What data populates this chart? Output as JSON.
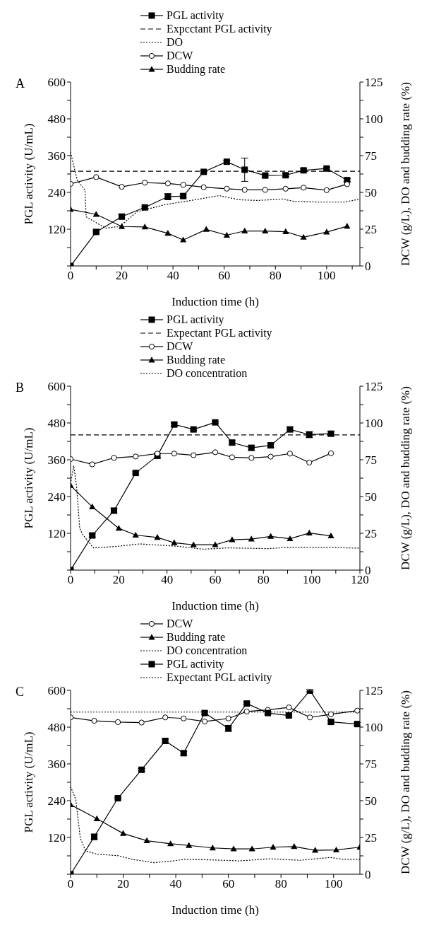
{
  "chart_data": [
    {
      "type": "line",
      "title": "A",
      "xlabel": "Induction time (h)",
      "ylabel": "PGL activity (U/mL)",
      "y2label": "DCW (g/L), DO and budding rate (%)",
      "legend": "top",
      "xlim": [
        0,
        113
      ],
      "xticks": [
        0,
        {
          "value": 10,
          "label": null
        },
        20,
        {
          "value": 30,
          "label": null
        },
        40,
        {
          "value": 50,
          "label": null
        },
        60,
        {
          "value": 70,
          "label": null
        },
        80,
        {
          "value": 90,
          "label": null
        },
        100,
        {
          "value": 110,
          "label": null
        }
      ],
      "ylim": [
        0,
        600
      ],
      "yticks": [
        {
          "value": 0,
          "label": null
        },
        {
          "value": 60,
          "label": null
        },
        120,
        {
          "value": 180,
          "label": null
        },
        240,
        {
          "value": 300,
          "label": null
        },
        360,
        {
          "value": 420,
          "label": null
        },
        480,
        {
          "value": 540,
          "label": null
        },
        600
      ],
      "y2lim": [
        0,
        125
      ],
      "y2ticks": [
        0,
        {
          "value": 12.5,
          "label": null
        },
        25,
        {
          "value": 37.5,
          "label": null
        },
        50,
        {
          "value": 62.5,
          "label": null
        },
        75,
        {
          "value": 87.5,
          "label": null
        },
        100,
        {
          "value": 112.5,
          "label": null
        },
        125
      ],
      "series": [
        {
          "name": "PGL activity",
          "color": "#000000",
          "marker": "square",
          "line_style": "solid",
          "x": [
            0,
            10,
            20,
            29,
            38,
            44,
            52,
            61,
            68,
            76,
            84,
            91,
            100,
            108
          ],
          "values": [
            0,
            111,
            161,
            191,
            226,
            228,
            307,
            340,
            314,
            295,
            296,
            312,
            318,
            280
          ],
          "errors": [
            null,
            3,
            8,
            4,
            10,
            6,
            4,
            5,
            38,
            5,
            5,
            5,
            4,
            5
          ]
        },
        {
          "name": "Expcctant PGL activity",
          "color": "#000000",
          "marker": "none",
          "line_style": "dashed",
          "x": [
            0,
            113
          ],
          "values": [
            309,
            309
          ]
        },
        {
          "name": "DO",
          "color": "#000000",
          "marker": "none",
          "line_style": "dotted",
          "axis": "y2",
          "x": [
            0,
            2.6,
            5.6,
            6.1,
            13.7,
            19.2,
            25.9,
            37,
            46,
            58,
            66,
            73,
            83,
            87,
            97,
            107,
            113
          ],
          "values": [
            77.3,
            58.3,
            51.7,
            33.4,
            25.7,
            26.8,
            36.8,
            41.7,
            44.2,
            47.8,
            45.0,
            44.5,
            45.5,
            43.9,
            43.4,
            43.4,
            45.5
          ]
        },
        {
          "name": "DCW",
          "color": "#000000",
          "marker": "circle",
          "line_style": "solid",
          "axis": "y2",
          "x": [
            0,
            10,
            20,
            29,
            38,
            44,
            52,
            61,
            68,
            76,
            84,
            91,
            100,
            108
          ],
          "values": [
            55.8,
            60.4,
            53.8,
            56.6,
            56.1,
            55.1,
            53.5,
            52.5,
            51.7,
            51.7,
            52.5,
            53.2,
            51.5,
            55.6
          ]
        },
        {
          "name": "Budding rate",
          "color": "#000000",
          "marker": "triangle",
          "line_style": "solid",
          "axis": "y2",
          "x": [
            0,
            10,
            20,
            29,
            38,
            44,
            53,
            61,
            68,
            76,
            84,
            91,
            100,
            108
          ],
          "values": [
            38.4,
            35.1,
            26.8,
            26.5,
            22.2,
            17.7,
            24.8,
            20.9,
            23.8,
            23.7,
            23.3,
            19.5,
            23.0,
            27.0
          ]
        }
      ]
    },
    {
      "type": "line",
      "title": "B",
      "xlabel": "Induction time (h)",
      "ylabel": "PGL activity (U/mL)",
      "y2label": "DCW (g/L), DO and budding rate (%)",
      "legend": "top",
      "xlim": [
        0,
        120
      ],
      "xticks": [
        0,
        {
          "value": 10,
          "label": null
        },
        20,
        {
          "value": 30,
          "label": null
        },
        40,
        {
          "value": 50,
          "label": null
        },
        60,
        {
          "value": 70,
          "label": null
        },
        80,
        {
          "value": 90,
          "label": null
        },
        100,
        {
          "value": 110,
          "label": null
        },
        120
      ],
      "ylim": [
        0,
        600
      ],
      "yticks": [
        {
          "value": 0,
          "label": null
        },
        {
          "value": 60,
          "label": null
        },
        120,
        {
          "value": 180,
          "label": null
        },
        240,
        {
          "value": 300,
          "label": null
        },
        360,
        {
          "value": 420,
          "label": null
        },
        480,
        {
          "value": 540,
          "label": null
        },
        600
      ],
      "y2lim": [
        0,
        125
      ],
      "y2ticks": [
        0,
        {
          "value": 12.5,
          "label": null
        },
        25,
        {
          "value": 37.5,
          "label": null
        },
        50,
        {
          "value": 62.5,
          "label": null
        },
        75,
        {
          "value": 87.5,
          "label": null
        },
        100,
        {
          "value": 112.5,
          "label": null
        },
        125
      ],
      "series": [
        {
          "name": "PGL activity",
          "color": "#000000",
          "marker": "square",
          "line_style": "solid",
          "x": [
            0,
            9,
            18,
            27,
            36,
            43,
            51,
            60,
            67,
            75,
            83,
            91,
            99,
            108
          ],
          "values": [
            0,
            113,
            194,
            317,
            373,
            475,
            459,
            482,
            416,
            399,
            407,
            459,
            442,
            445
          ],
          "errors": [
            null,
            5,
            8,
            4,
            8,
            5,
            4,
            4,
            8,
            8,
            8,
            8,
            10,
            7
          ]
        },
        {
          "name": "Expectant PGL activity",
          "color": "#000000",
          "marker": "none",
          "line_style": "dashed",
          "x": [
            0,
            120
          ],
          "values": [
            441,
            441
          ]
        },
        {
          "name": "DCW",
          "color": "#000000",
          "marker": "circle",
          "line_style": "solid",
          "axis": "y2",
          "x": [
            0,
            9,
            18,
            27,
            36,
            43,
            51,
            60,
            67,
            75,
            83,
            91,
            99,
            108
          ],
          "values": [
            75.5,
            71.9,
            76.3,
            77.2,
            79.2,
            79.2,
            78.1,
            80.1,
            76.7,
            76.3,
            77.1,
            79.2,
            73.1,
            79.4
          ]
        },
        {
          "name": "Budding rate",
          "color": "#000000",
          "marker": "triangle",
          "line_style": "solid",
          "axis": "y2",
          "x": [
            0,
            9,
            20,
            27,
            36,
            43,
            51,
            60,
            67,
            75,
            83,
            91,
            99,
            108
          ],
          "values": [
            57.5,
            43.0,
            28.4,
            23.8,
            22.2,
            18.6,
            17.2,
            17.2,
            20.6,
            21.1,
            22.9,
            21.3,
            25.2,
            23.3
          ]
        },
        {
          "name": "DO concentration",
          "color": "#000000",
          "marker": "none",
          "line_style": "dotted",
          "axis": "y2",
          "x": [
            0,
            1.3,
            2.5,
            3.8,
            5.1,
            9.5,
            18.4,
            28.6,
            43.8,
            55.2,
            65.4,
            81.9,
            92.1,
            107.3,
            120
          ],
          "values": [
            58.6,
            71.0,
            56.8,
            28.4,
            24.0,
            15.1,
            16.0,
            17.8,
            16.3,
            14.2,
            15.1,
            14.6,
            15.6,
            15.4,
            14.9
          ]
        }
      ]
    },
    {
      "type": "line",
      "title": "C",
      "xlabel": "Induction time (h)",
      "ylabel": "PGL activity (U/mL)",
      "y2label": "DCW (g/L), DO and budding rate (%)",
      "legend": "top",
      "xlim": [
        0,
        110
      ],
      "xticks": [
        0,
        {
          "value": 10,
          "label": null
        },
        20,
        {
          "value": 30,
          "label": null
        },
        40,
        {
          "value": 50,
          "label": null
        },
        60,
        {
          "value": 70,
          "label": null
        },
        80,
        {
          "value": 90,
          "label": null
        },
        100
      ],
      "ylim": [
        0,
        600
      ],
      "yticks": [
        {
          "value": 0,
          "label": null
        },
        {
          "value": 60,
          "label": null
        },
        120,
        {
          "value": 180,
          "label": null
        },
        240,
        {
          "value": 300,
          "label": null
        },
        360,
        {
          "value": 420,
          "label": null
        },
        480,
        {
          "value": 540,
          "label": null
        },
        600
      ],
      "y2lim": [
        0,
        125
      ],
      "y2ticks": [
        0,
        {
          "value": 12.5,
          "label": null
        },
        25,
        {
          "value": 37.5,
          "label": null
        },
        50,
        {
          "value": 62.5,
          "label": null
        },
        75,
        {
          "value": 87.5,
          "label": null
        },
        100,
        {
          "value": 112.5,
          "label": null
        },
        125
      ],
      "series": [
        {
          "name": "DCW",
          "color": "#000000",
          "marker": "circle",
          "line_style": "solid",
          "axis": "y2",
          "x": [
            0,
            9,
            18,
            27,
            36,
            43,
            51,
            60,
            67,
            75,
            83,
            91,
            99,
            109
          ],
          "values": [
            106.6,
            104.3,
            103.4,
            103.1,
            106.6,
            105.9,
            103.8,
            105.9,
            110.6,
            111.7,
            113.4,
            106.6,
            108.7,
            111.2
          ]
        },
        {
          "name": "Budding rate",
          "color": "#000000",
          "marker": "triangle",
          "line_style": "solid",
          "axis": "y2",
          "x": [
            0,
            10,
            20,
            29,
            38,
            45,
            54,
            62,
            69,
            77,
            85,
            93,
            101,
            110
          ],
          "values": [
            47.3,
            37.7,
            27.7,
            22.8,
            20.7,
            19.6,
            17.9,
            17.2,
            17.2,
            18.4,
            18.8,
            16.3,
            16.5,
            18.4
          ]
        },
        {
          "name": "DO concentration",
          "color": "#000000",
          "marker": "none",
          "line_style": "dotted",
          "axis": "y2",
          "x": [
            0,
            2,
            3.7,
            5.7,
            10,
            18.1,
            23.8,
            31.8,
            37.6,
            43.5,
            52.7,
            64.2,
            75.8,
            87.3,
            98.8,
            103.4,
            110
          ],
          "values": [
            59.6,
            50.8,
            24.5,
            15.8,
            13.7,
            12.6,
            10.0,
            7.9,
            8.8,
            10.2,
            9.8,
            9.1,
            10.5,
            9.5,
            11.4,
            10.2,
            10.2
          ]
        },
        {
          "name": "PGL activity",
          "color": "#000000",
          "marker": "square",
          "line_style": "solid",
          "x": [
            0,
            9,
            18,
            27,
            36,
            43,
            51,
            60,
            67,
            75,
            83,
            91,
            99,
            109
          ],
          "values": [
            0,
            122,
            248,
            341,
            435,
            395,
            526,
            476,
            557,
            526,
            518,
            599,
            497,
            490
          ],
          "errors": [
            null,
            9,
            3,
            4,
            6,
            6,
            5,
            10,
            4,
            4,
            5,
            4,
            4,
            5
          ]
        },
        {
          "name": "Expectant PGL activity",
          "color": "#000000",
          "marker": "none",
          "line_style": "dotted",
          "x": [
            0,
            110
          ],
          "values": [
            529,
            529
          ]
        }
      ]
    }
  ]
}
